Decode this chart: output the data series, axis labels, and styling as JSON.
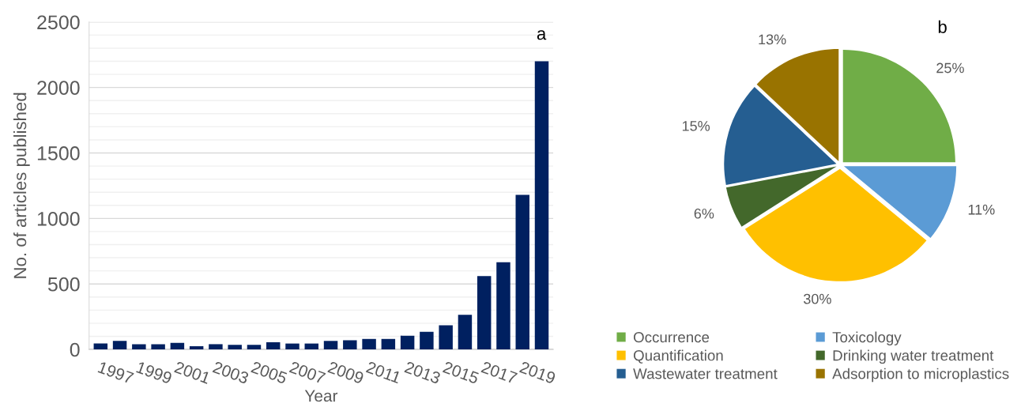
{
  "chart_data": [
    {
      "type": "bar",
      "categories": [
        "1997",
        null,
        "1999",
        null,
        "2001",
        null,
        "2003",
        null,
        "2005",
        null,
        "2007",
        null,
        "2009",
        null,
        "2011",
        null,
        "2013",
        null,
        "2015",
        null,
        "2017",
        null,
        "2019",
        null
      ],
      "values": [
        45,
        65,
        40,
        40,
        50,
        25,
        40,
        35,
        35,
        55,
        45,
        45,
        65,
        70,
        80,
        80,
        105,
        135,
        185,
        265,
        560,
        665,
        1180,
        2200
      ],
      "color": "#002060",
      "xlabel": "Year",
      "ylabel": "No. of articles published",
      "ylim": [
        0,
        2500
      ],
      "yticks": [
        0,
        {
          "value": 100,
          "label": null
        },
        {
          "value": 200,
          "label": null
        },
        {
          "value": 300,
          "label": null
        },
        {
          "value": 400,
          "label": null
        },
        500,
        {
          "value": 600,
          "label": null
        },
        {
          "value": 700,
          "label": null
        },
        {
          "value": 800,
          "label": null
        },
        {
          "value": 900,
          "label": null
        },
        1000,
        {
          "value": 1100,
          "label": null
        },
        {
          "value": 1200,
          "label": null
        },
        {
          "value": 1300,
          "label": null
        },
        {
          "value": 1400,
          "label": null
        },
        1500,
        {
          "value": 1600,
          "label": null
        },
        {
          "value": 1700,
          "label": null
        },
        {
          "value": 1800,
          "label": null
        },
        {
          "value": 1900,
          "label": null
        },
        2000,
        {
          "value": 2100,
          "label": null
        },
        {
          "value": 2200,
          "label": null
        },
        {
          "value": 2300,
          "label": null
        },
        {
          "value": 2400,
          "label": null
        },
        2500
      ],
      "grid": "y",
      "annotations": [
        "a"
      ]
    },
    {
      "type": "pie",
      "categories": [
        "Occurrence",
        "Toxicology",
        "Quantification",
        "Drinking water treatment",
        "Wastewater treatment",
        "Adsorption to microplastics"
      ],
      "values": [
        25,
        11,
        30,
        6,
        15,
        13
      ],
      "colors": [
        "#70ad47",
        "#5b9bd5",
        "#ffc000",
        "#43682b",
        "#255e91",
        "#997300"
      ],
      "value_labels": [
        "25%",
        "11%",
        "30%",
        "6%",
        "15%",
        "13%"
      ],
      "legend": "bottom",
      "annotations": [
        "b"
      ]
    }
  ]
}
